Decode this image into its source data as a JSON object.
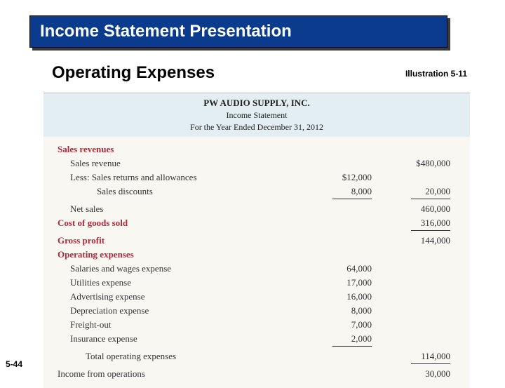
{
  "banner": {
    "title": "Income Statement Presentation"
  },
  "subtitle": "Operating Expenses",
  "illustration": "Illustration 5-11",
  "page_number": "5-44",
  "statement": {
    "company": "PW AUDIO SUPPLY, INC.",
    "title": "Income Statement",
    "period": "For the Year Ended December 31, 2012",
    "sections": {
      "sales_revenues": "Sales revenues",
      "sales_revenue": "Sales revenue",
      "sales_revenue_amt": "$480,000",
      "less_returns": "Less: Sales returns and allowances",
      "returns_amt": "$12,000",
      "discounts": "Sales discounts",
      "discounts_amt": "8,000",
      "deductions_total": "20,000",
      "net_sales": "Net sales",
      "net_sales_amt": "460,000",
      "cogs": "Cost of goods sold",
      "cogs_amt": "316,000",
      "gross_profit": "Gross profit",
      "gross_profit_amt": "144,000",
      "op_exp": "Operating expenses",
      "salaries": "Salaries and wages expense",
      "salaries_amt": "64,000",
      "utilities": "Utilities expense",
      "utilities_amt": "17,000",
      "advertising": "Advertising expense",
      "advertising_amt": "16,000",
      "depreciation": "Depreciation expense",
      "depreciation_amt": "8,000",
      "freight": "Freight-out",
      "freight_amt": "7,000",
      "insurance": "Insurance expense",
      "insurance_amt": "2,000",
      "total_op": "Total operating expenses",
      "total_op_amt": "114,000",
      "income_ops": "Income from operations",
      "income_ops_amt": "30,000"
    }
  },
  "colors": {
    "banner_bg": "#0a3b8c",
    "banner_shadow": "#3a3a3a",
    "section_head": "#b22a3a",
    "stmt_bg": "#f8f7f2",
    "stmt_header_bg": "#e2eef2"
  }
}
